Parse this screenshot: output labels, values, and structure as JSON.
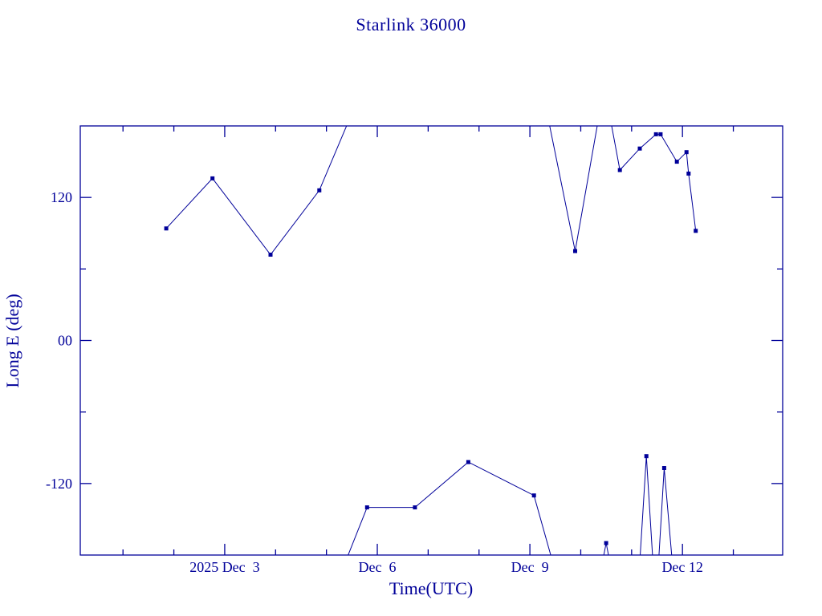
{
  "colors": {
    "accent": "#000099",
    "background": "#ffffff"
  },
  "chart_data": {
    "type": "line",
    "title": "Starlink 36000",
    "xlabel": "Time(UTC)",
    "ylabel": "Long E (deg)",
    "grid": false,
    "legend": false,
    "marker_style": "filled-square",
    "x_axis": {
      "lim": [
        0.16,
        13.97
      ],
      "unit": "day of December 2025 (UTC)",
      "minor_step": 1,
      "major_ticks": [
        {
          "value": 3,
          "label": "2025 Dec  3"
        },
        {
          "value": 6,
          "label": "Dec  6"
        },
        {
          "value": 9,
          "label": "Dec  9"
        },
        {
          "value": 12,
          "label": "Dec 12"
        }
      ]
    },
    "y_axis": {
      "lim": [
        -180,
        180
      ],
      "unit": "degrees east longitude",
      "minor_step": 60,
      "major_ticks": [
        {
          "value": 120,
          "label": "120"
        },
        {
          "value": 0,
          "label": "00"
        },
        {
          "value": -120,
          "label": "-120"
        }
      ]
    },
    "segments": [
      {
        "points": [
          [
            1.85,
            94,
            1
          ],
          [
            2.76,
            136,
            1
          ],
          [
            3.9,
            72,
            1
          ],
          [
            4.86,
            126,
            1
          ],
          [
            5.92,
            233,
            0
          ]
        ]
      },
      {
        "points": [
          [
            5.24,
            -200,
            0
          ],
          [
            5.8,
            -140,
            1
          ],
          [
            6.74,
            -140,
            1
          ],
          [
            7.79,
            -102,
            1
          ],
          [
            9.08,
            -130,
            1
          ],
          [
            9.62,
            -212,
            0
          ]
        ]
      },
      {
        "points": [
          [
            9.27,
            205,
            0
          ],
          [
            9.89,
            75,
            1
          ],
          [
            10.44,
            208,
            0
          ]
        ]
      },
      {
        "points": [
          [
            10.53,
            198,
            0
          ],
          [
            10.77,
            143,
            1
          ],
          [
            11.16,
            161,
            1
          ],
          [
            11.48,
            173,
            1
          ],
          [
            11.57,
            173,
            1
          ],
          [
            11.89,
            150,
            1
          ],
          [
            12.08,
            158,
            1
          ],
          [
            12.12,
            140,
            1
          ],
          [
            12.26,
            92,
            1
          ]
        ]
      },
      {
        "points": [
          [
            10.44,
            -183,
            0
          ],
          [
            10.5,
            -170,
            1
          ],
          [
            10.56,
            -183,
            0
          ]
        ]
      },
      {
        "points": [
          [
            11.16,
            -186,
            0
          ],
          [
            11.29,
            -97,
            1
          ],
          [
            11.42,
            -186,
            0
          ]
        ]
      },
      {
        "points": [
          [
            11.53,
            -186,
            0
          ],
          [
            11.64,
            -107,
            1
          ],
          [
            11.8,
            -186,
            0
          ]
        ]
      }
    ]
  }
}
